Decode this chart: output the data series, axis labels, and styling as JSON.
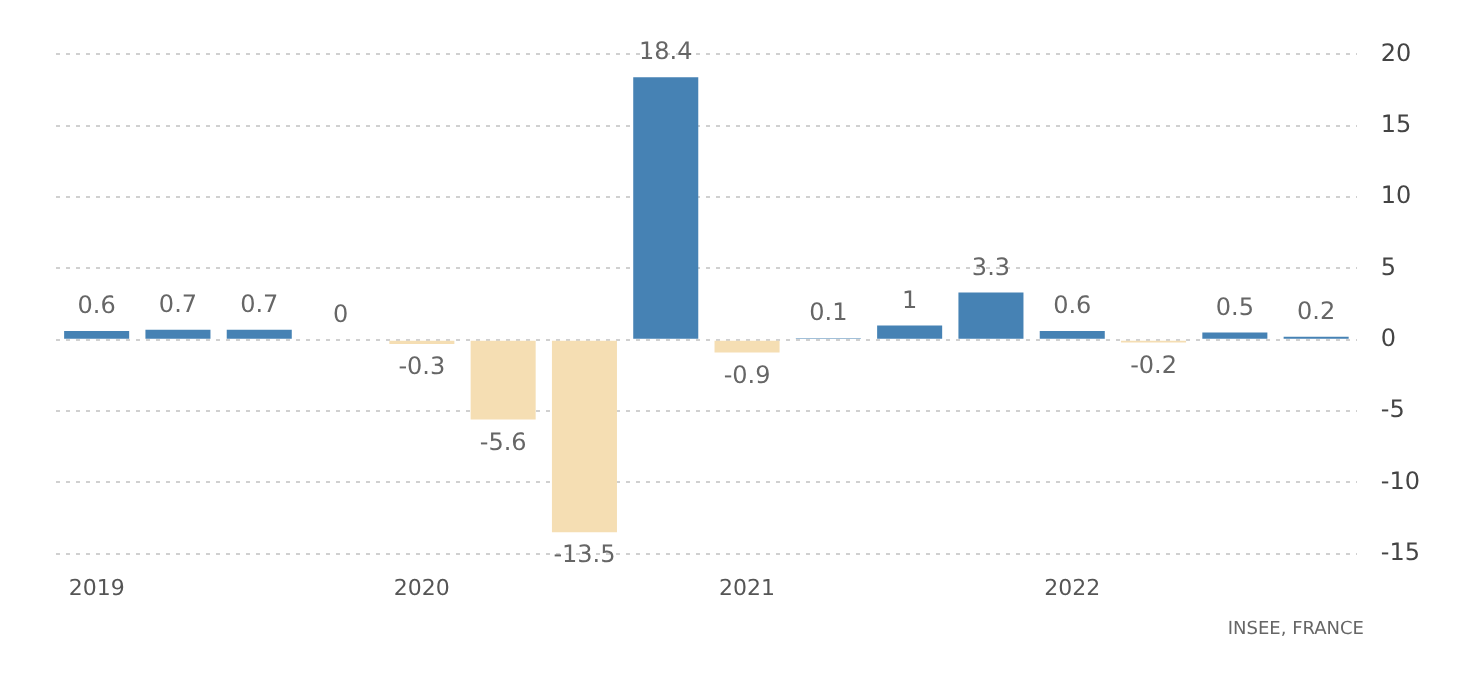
{
  "chart_data": {
    "type": "bar",
    "categories": [
      "2019",
      null,
      null,
      null,
      "2020",
      null,
      null,
      null,
      "2021",
      null,
      null,
      null,
      "2022",
      null,
      null,
      null
    ],
    "values": [
      0.6,
      0.7,
      0.7,
      0,
      -0.3,
      -5.6,
      -13.5,
      18.4,
      -0.9,
      0.1,
      1,
      3.3,
      0.6,
      -0.2,
      0.5,
      0.2
    ],
    "colors": [
      "#4682b4",
      "#4682b4",
      "#4682b4",
      "#4682b4",
      "#f5deb3",
      "#f5deb3",
      "#f5deb3",
      "#4682b4",
      "#f5deb3",
      "#4682b4",
      "#4682b4",
      "#4682b4",
      "#4682b4",
      "#f5deb3",
      "#4682b4",
      "#4682b4"
    ],
    "ylim": [
      -15,
      20
    ],
    "yticks": [
      -15,
      -10,
      -5,
      0,
      5,
      10,
      15,
      20
    ],
    "grid": "y",
    "data_labels": true,
    "legend": false,
    "annotations": [
      "INSEE, FRANCE"
    ]
  }
}
